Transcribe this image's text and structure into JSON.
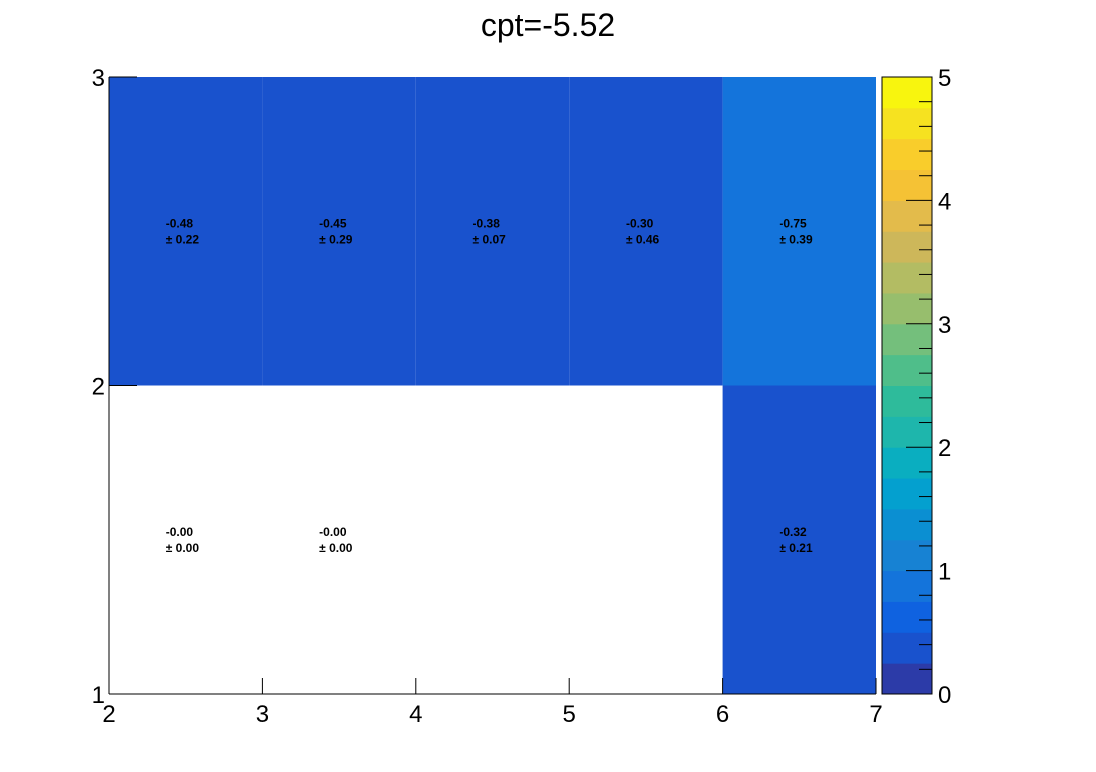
{
  "chart_data": {
    "type": "heatmap",
    "title": "cpt=-5.52",
    "xlabel": "",
    "ylabel": "",
    "x_edges": [
      2,
      3,
      4,
      5,
      6,
      7
    ],
    "y_edges": [
      1,
      2,
      3
    ],
    "xlim": [
      2,
      7
    ],
    "ylim": [
      1,
      3
    ],
    "zlim": [
      0,
      5
    ],
    "x_ticks": [
      "2",
      "3",
      "4",
      "5",
      "6",
      "7"
    ],
    "y_ticks": [
      "1",
      "2",
      "3"
    ],
    "z_ticks": [
      "0",
      "1",
      "2",
      "3",
      "4",
      "5"
    ],
    "cells": [
      {
        "x": [
          2,
          3
        ],
        "y": [
          1,
          2
        ],
        "value": "-0.00",
        "error": "± 0.00",
        "color": "#ffffff"
      },
      {
        "x": [
          3,
          4
        ],
        "y": [
          1,
          2
        ],
        "value": "-0.00",
        "error": "± 0.00",
        "color": "#ffffff"
      },
      {
        "x": [
          4,
          5
        ],
        "y": [
          1,
          2
        ],
        "value": "",
        "error": "",
        "color": "#ffffff"
      },
      {
        "x": [
          5,
          6
        ],
        "y": [
          1,
          2
        ],
        "value": "",
        "error": "",
        "color": "#ffffff"
      },
      {
        "x": [
          6,
          7
        ],
        "y": [
          1,
          2
        ],
        "value": "-0.32",
        "error": "± 0.21",
        "color": "#1952cd"
      },
      {
        "x": [
          2,
          3
        ],
        "y": [
          2,
          3
        ],
        "value": "-0.48",
        "error": "± 0.22",
        "color": "#1952cd"
      },
      {
        "x": [
          3,
          4
        ],
        "y": [
          2,
          3
        ],
        "value": "-0.45",
        "error": "± 0.29",
        "color": "#1952cd"
      },
      {
        "x": [
          4,
          5
        ],
        "y": [
          2,
          3
        ],
        "value": "-0.38",
        "error": "± 0.07",
        "color": "#1952cd"
      },
      {
        "x": [
          5,
          6
        ],
        "y": [
          2,
          3
        ],
        "value": "-0.30",
        "error": "± 0.46",
        "color": "#1952cd"
      },
      {
        "x": [
          6,
          7
        ],
        "y": [
          2,
          3
        ],
        "value": "-0.75",
        "error": "± 0.39",
        "color": "#1474db"
      }
    ],
    "palette": [
      "#2c3ba8",
      "#1952cd",
      "#0f62e0",
      "#1474db",
      "#1782d3",
      "#0b8fd2",
      "#04a0cf",
      "#0aaec0",
      "#1eb6ac",
      "#2ebb9b",
      "#4fbe8a",
      "#74bf7c",
      "#97be6d",
      "#b3bc63",
      "#cdb75a",
      "#e3bb4b",
      "#f5c235",
      "#f9cd2b",
      "#f6e220",
      "#f8f50e"
    ],
    "grid": false,
    "legend": "colorbar-right"
  }
}
